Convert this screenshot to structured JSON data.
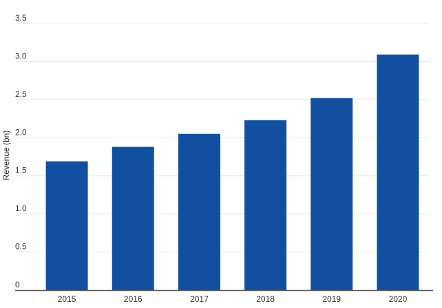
{
  "chart_data": {
    "type": "bar",
    "title": "",
    "xlabel": "",
    "ylabel": "Revenue (bn)",
    "categories": [
      "2015",
      "2016",
      "2017",
      "2018",
      "2019",
      "2020"
    ],
    "values": [
      1.69,
      1.88,
      2.05,
      2.23,
      2.52,
      3.09
    ],
    "ylim": [
      0,
      3.5
    ],
    "yticks": [
      0,
      0.5,
      1.0,
      1.5,
      2.0,
      2.5,
      3.0,
      3.5
    ],
    "ytick_labels": [
      "0",
      "0.5",
      "1.0",
      "1.5",
      "2.0",
      "2.5",
      "3.0",
      "3.5"
    ],
    "bar_color": "#1150a0",
    "grid_color": "#e6e6e6",
    "axis_color": "#555555",
    "grid": true,
    "legend": "none"
  }
}
